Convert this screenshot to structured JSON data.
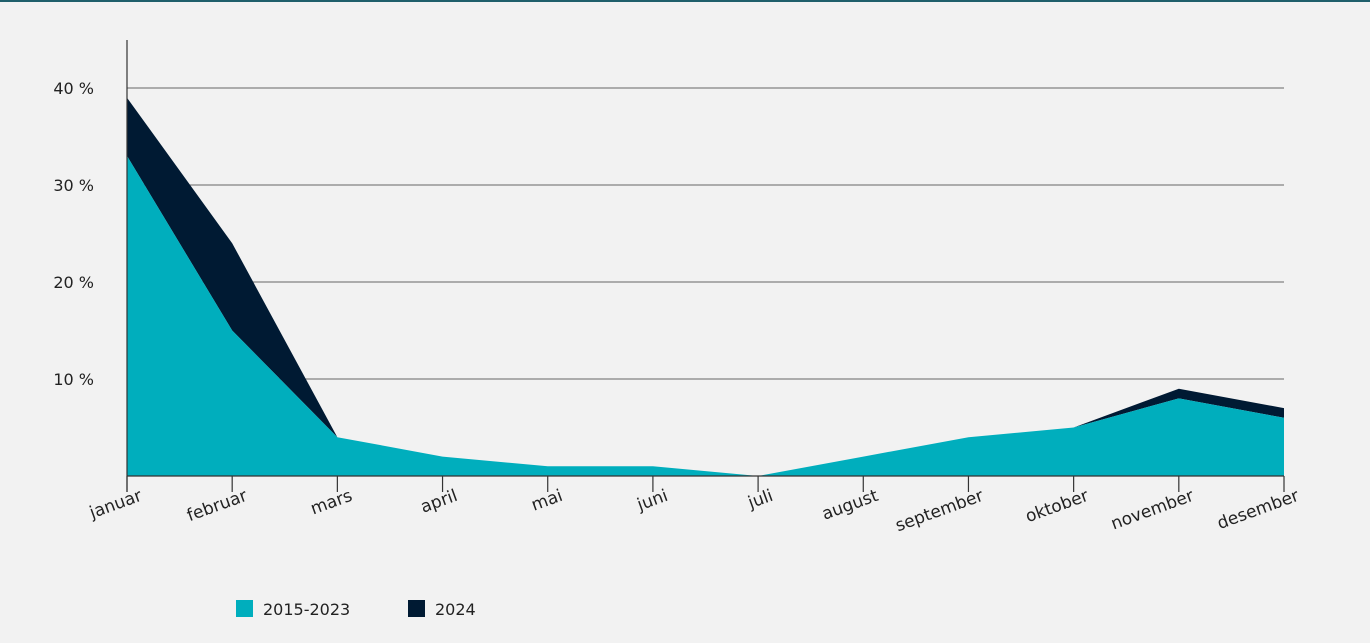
{
  "chart_data": {
    "type": "area",
    "stacked": true,
    "categories": [
      "januar",
      "februar",
      "mars",
      "april",
      "mai",
      "juni",
      "juli",
      "august",
      "september",
      "oktober",
      "november",
      "desember"
    ],
    "series": [
      {
        "name": "2015-2023",
        "color": "#00aebd",
        "values": [
          33,
          15,
          4,
          2,
          1,
          1,
          0,
          2,
          4,
          5,
          8,
          6
        ]
      },
      {
        "name": "2024",
        "color": "#001a33",
        "values": [
          6,
          9,
          0,
          0,
          0,
          0,
          0,
          0,
          0,
          0,
          1,
          1
        ]
      }
    ],
    "ylim": [
      0,
      45
    ],
    "yticks": [
      {
        "value": 10,
        "label": "10 %"
      },
      {
        "value": 20,
        "label": "20 %"
      },
      {
        "value": 30,
        "label": "30 %"
      },
      {
        "value": 40,
        "label": "40 %"
      }
    ],
    "grid": true,
    "legend_position": "bottom-left"
  }
}
